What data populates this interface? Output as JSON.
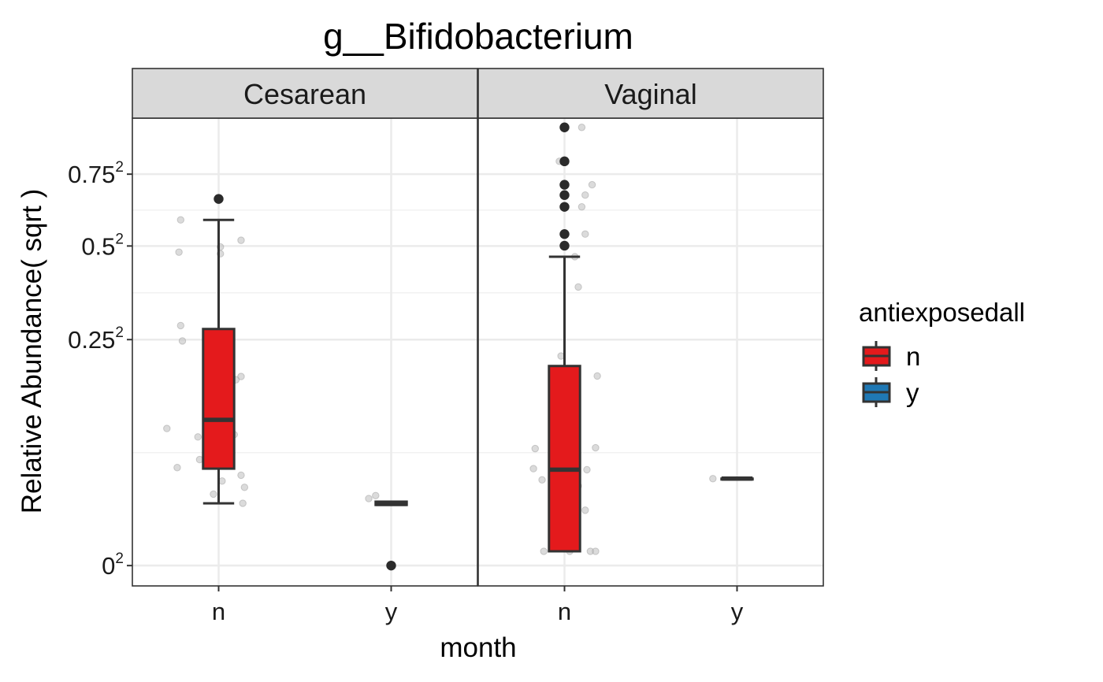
{
  "chart_data": {
    "type": "box",
    "title": "g__Bifidobacterium",
    "xlabel": "month",
    "ylabel": "Relative Abundance( sqrt )",
    "y_scale": "sqrt",
    "y_ticks": [
      {
        "base": "0",
        "exp": "2",
        "value": 0.0
      },
      {
        "base": "0.25",
        "exp": "2",
        "value": 0.25
      },
      {
        "base": "0.5",
        "exp": "2",
        "value": 0.5
      },
      {
        "base": "0.75",
        "exp": "2",
        "value": 0.75
      }
    ],
    "ylim_sqrt": [
      -0.045,
      0.99
    ],
    "categories": [
      "n",
      "y"
    ],
    "grid": true,
    "legend": {
      "title": "antiexposedall",
      "position": "right",
      "entries": [
        {
          "label": "n",
          "color": "#E41A1C"
        },
        {
          "label": "y",
          "color": "#1F78B4"
        }
      ]
    },
    "facets": [
      {
        "label": "Cesarean",
        "boxes": [
          {
            "x": "n",
            "group": "n",
            "q1": 0.046,
            "median": 0.104,
            "q3": 0.274,
            "whisker_low": 0.019,
            "whisker_high": 0.585,
            "outliers": [
              0.658
            ],
            "points": [
              {
                "dx": -0.22,
                "y": 0.585
              },
              {
                "dx": -0.23,
                "y": 0.481
              },
              {
                "dx": 0.01,
                "y": 0.497
              },
              {
                "dx": 0.13,
                "y": 0.518
              },
              {
                "dx": 0.01,
                "y": 0.476
              },
              {
                "dx": -0.22,
                "y": 0.282
              },
              {
                "dx": -0.21,
                "y": 0.247
              },
              {
                "dx": -0.04,
                "y": 0.18
              },
              {
                "dx": 0.13,
                "y": 0.175
              },
              {
                "dx": 0.1,
                "y": 0.169
              },
              {
                "dx": -0.07,
                "y": 0.15
              },
              {
                "dx": -0.02,
                "y": 0.115
              },
              {
                "dx": 0.04,
                "y": 0.12
              },
              {
                "dx": -0.3,
                "y": 0.092
              },
              {
                "dx": 0.09,
                "y": 0.084
              },
              {
                "dx": -0.12,
                "y": 0.081
              },
              {
                "dx": 0.05,
                "y": 0.07
              },
              {
                "dx": -0.04,
                "y": 0.06
              },
              {
                "dx": -0.11,
                "y": 0.055
              },
              {
                "dx": -0.24,
                "y": 0.047
              },
              {
                "dx": 0.13,
                "y": 0.04
              },
              {
                "dx": 0.15,
                "y": 0.03
              },
              {
                "dx": 0.02,
                "y": 0.035
              },
              {
                "dx": 0.14,
                "y": 0.019
              },
              {
                "dx": -0.03,
                "y": 0.025
              }
            ]
          },
          {
            "x": "y",
            "group": "n",
            "q1": 0.018,
            "median": 0.019,
            "q3": 0.02,
            "whisker_low": 0.018,
            "whisker_high": 0.02,
            "outliers": [
              0.0
            ],
            "points": [
              {
                "dx": -0.13,
                "y": 0.022
              },
              {
                "dx": -0.09,
                "y": 0.024
              }
            ]
          }
        ]
      },
      {
        "label": "Vaginal",
        "boxes": [
          {
            "x": "n",
            "group": "n",
            "q1": 0.001,
            "median": 0.045,
            "q3": 0.195,
            "whisker_low": 0.001,
            "whisker_high": 0.467,
            "outliers": [
              0.94,
              0.8,
              0.71,
              0.672,
              0.63,
              0.538,
              0.501
            ],
            "points": [
              {
                "dx": 0.1,
                "y": 0.94
              },
              {
                "dx": -0.03,
                "y": 0.8
              },
              {
                "dx": 0.16,
                "y": 0.71
              },
              {
                "dx": 0.12,
                "y": 0.672
              },
              {
                "dx": 0.1,
                "y": 0.63
              },
              {
                "dx": 0.12,
                "y": 0.538
              },
              {
                "dx": 0.06,
                "y": 0.467
              },
              {
                "dx": 0.08,
                "y": 0.38
              },
              {
                "dx": -0.02,
                "y": 0.215
              },
              {
                "dx": 0.19,
                "y": 0.176
              },
              {
                "dx": -0.03,
                "y": 0.12
              },
              {
                "dx": 0.06,
                "y": 0.083
              },
              {
                "dx": -0.17,
                "y": 0.067
              },
              {
                "dx": 0.18,
                "y": 0.068
              },
              {
                "dx": -0.06,
                "y": 0.057
              },
              {
                "dx": -0.18,
                "y": 0.046
              },
              {
                "dx": 0.13,
                "y": 0.045
              },
              {
                "dx": -0.13,
                "y": 0.036
              },
              {
                "dx": 0.08,
                "y": 0.031
              },
              {
                "dx": -0.02,
                "y": 0.022
              },
              {
                "dx": 0.12,
                "y": 0.015
              },
              {
                "dx": -0.07,
                "y": 0.01
              },
              {
                "dx": -0.12,
                "y": 0.001
              },
              {
                "dx": 0.03,
                "y": 0.001
              },
              {
                "dx": 0.15,
                "y": 0.001
              },
              {
                "dx": 0.18,
                "y": 0.001
              }
            ]
          },
          {
            "x": "y",
            "group": "n",
            "q1": 0.037,
            "median": 0.037,
            "q3": 0.037,
            "whisker_low": 0.037,
            "whisker_high": 0.037,
            "outliers": [],
            "points": [
              {
                "dx": -0.14,
                "y": 0.037
              }
            ]
          }
        ]
      }
    ]
  }
}
